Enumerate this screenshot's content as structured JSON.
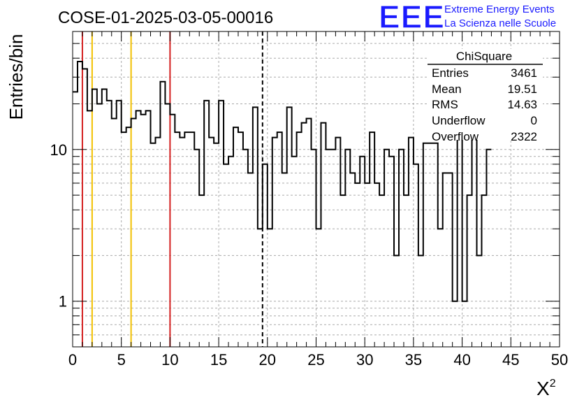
{
  "chart_data": {
    "type": "histogram",
    "title": "COSE-01-2025-03-05-00016",
    "xlabel": "X",
    "xlabel_superscript": "2",
    "ylabel": "Entries/bin",
    "xlim": [
      0,
      50
    ],
    "ylim": [
      0.5,
      60
    ],
    "yscale": "log",
    "grid": true,
    "bin_width": 0.5,
    "x_ticks": [
      0,
      5,
      10,
      15,
      20,
      25,
      30,
      35,
      40,
      45,
      50
    ],
    "y_ticks": [
      1,
      10
    ],
    "counts": [
      24,
      38,
      34,
      18,
      25,
      20,
      25,
      21,
      16,
      21,
      13,
      14,
      16,
      18,
      17,
      18,
      11,
      12,
      28,
      20,
      17,
      13,
      12,
      13,
      13,
      10,
      5,
      21,
      12,
      11,
      21,
      8,
      9,
      14,
      13,
      10,
      7,
      19,
      3,
      8,
      3,
      12,
      13,
      7,
      19,
      9,
      13,
      15,
      16,
      10,
      3,
      15,
      10,
      10,
      12,
      5,
      10,
      7,
      6,
      9,
      6,
      13,
      6,
      5,
      10,
      9,
      2,
      10,
      5,
      12,
      8,
      2,
      11,
      11,
      11,
      3,
      7,
      7,
      1,
      12,
      1,
      5,
      19,
      2,
      5,
      10
    ],
    "vertical_lines": [
      {
        "x": 1,
        "color": "#d42020",
        "style": "solid"
      },
      {
        "x": 2,
        "color": "#f2c000",
        "style": "solid"
      },
      {
        "x": 6,
        "color": "#f2c000",
        "style": "solid"
      },
      {
        "x": 10,
        "color": "#d42020",
        "style": "solid"
      },
      {
        "x": 19.5,
        "color": "#000000",
        "style": "dashed"
      }
    ],
    "stats_box": {
      "title": "ChiSquare",
      "rows": [
        {
          "label": "Entries",
          "value": "3461"
        },
        {
          "label": "Mean",
          "value": "19.51"
        },
        {
          "label": "RMS",
          "value": "14.63"
        },
        {
          "label": "Underflow",
          "value": "0"
        },
        {
          "label": "Overflow",
          "value": "2322"
        }
      ]
    }
  },
  "logo": {
    "text": "EEE",
    "line1": "Extreme Energy Events",
    "line2": "La Scienza nelle Scuole",
    "color": "#1a1aff"
  }
}
